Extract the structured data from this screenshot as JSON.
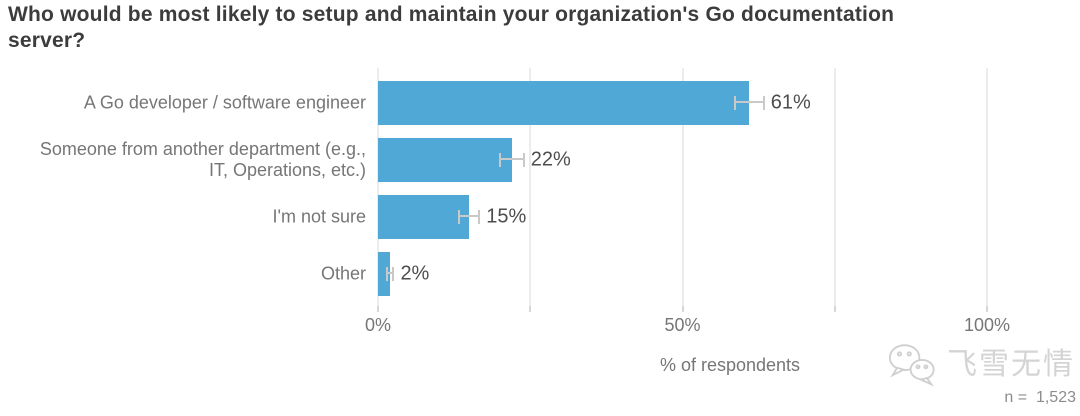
{
  "title": "Who would be most likely to setup and maintain your organization's Go documentation\nserver?",
  "chart_data": {
    "type": "bar",
    "orientation": "horizontal",
    "categories": [
      "A Go developer / software engineer",
      "Someone from another department (e.g.,\nIT, Operations, etc.)",
      "I'm not sure",
      "Other"
    ],
    "values": [
      61,
      22,
      15,
      2
    ],
    "value_labels": [
      "61%",
      "22%",
      "15%",
      "2%"
    ],
    "error_margins": [
      2.5,
      2.1,
      1.8,
      0.7
    ],
    "xlabel": "% of respondents",
    "xlim": [
      0,
      100
    ],
    "x_ticks": [
      0,
      50,
      100
    ],
    "x_tick_labels": [
      "0%",
      "50%",
      "100%"
    ],
    "gridlines_pct": [
      0,
      25,
      50,
      75,
      100
    ],
    "grid_on": true,
    "legend": "none",
    "bar_color": "#4fa8d5",
    "error_bar_color": "#c9c9c9",
    "grid_color": "#ececec",
    "label_color": "#767676",
    "value_label_color": "#4d4d4d"
  },
  "watermark": {
    "icon": "wechat-icon",
    "text": "飞雪无情"
  },
  "sample_size": "n =  1,523"
}
